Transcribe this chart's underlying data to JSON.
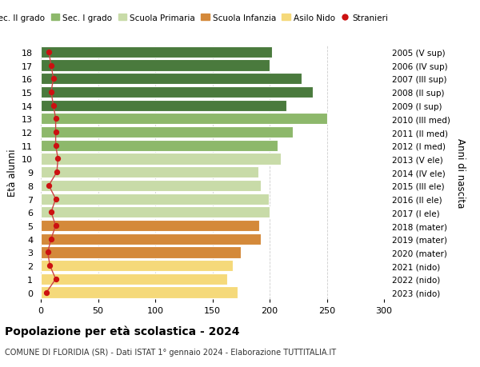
{
  "ages": [
    0,
    1,
    2,
    3,
    4,
    5,
    6,
    7,
    8,
    9,
    10,
    11,
    12,
    13,
    14,
    15,
    16,
    17,
    18
  ],
  "bar_values": [
    172,
    163,
    168,
    175,
    192,
    191,
    200,
    199,
    192,
    190,
    210,
    207,
    220,
    250,
    215,
    238,
    228,
    200,
    202
  ],
  "stranieri": [
    5,
    13,
    8,
    6,
    9,
    13,
    9,
    13,
    7,
    14,
    15,
    13,
    13,
    13,
    11,
    9,
    11,
    9,
    7
  ],
  "bar_colors": [
    "#f5d97a",
    "#f5d97a",
    "#f5d97a",
    "#d4893a",
    "#d4893a",
    "#d4893a",
    "#c8dba8",
    "#c8dba8",
    "#c8dba8",
    "#c8dba8",
    "#c8dba8",
    "#8db86b",
    "#8db86b",
    "#8db86b",
    "#4a7a3d",
    "#4a7a3d",
    "#4a7a3d",
    "#4a7a3d",
    "#4a7a3d"
  ],
  "right_labels": [
    "2023 (nido)",
    "2022 (nido)",
    "2021 (nido)",
    "2020 (mater)",
    "2019 (mater)",
    "2018 (mater)",
    "2017 (I ele)",
    "2016 (II ele)",
    "2015 (III ele)",
    "2014 (IV ele)",
    "2013 (V ele)",
    "2012 (I med)",
    "2011 (II med)",
    "2010 (III med)",
    "2009 (I sup)",
    "2008 (II sup)",
    "2007 (III sup)",
    "2006 (IV sup)",
    "2005 (V sup)"
  ],
  "legend_labels": [
    "Sec. II grado",
    "Sec. I grado",
    "Scuola Primaria",
    "Scuola Infanzia",
    "Asilo Nido",
    "Stranieri"
  ],
  "legend_colors": [
    "#4a7a3d",
    "#8db86b",
    "#c8dba8",
    "#d4893a",
    "#f5d97a",
    "#cc1111"
  ],
  "ylabel_left": "Età alunni",
  "ylabel_right": "Anni di nascita",
  "title": "Popolazione per età scolastica - 2024",
  "subtitle": "COMUNE DI FLORIDIA (SR) - Dati ISTAT 1° gennaio 2024 - Elaborazione TUTTITALIA.IT",
  "xlim": [
    0,
    300
  ],
  "xticks": [
    0,
    50,
    100,
    150,
    200,
    250,
    300
  ],
  "background_color": "#ffffff",
  "bar_height": 0.85,
  "stranieri_color": "#cc1111",
  "stranieri_line_color": "#cc4444"
}
